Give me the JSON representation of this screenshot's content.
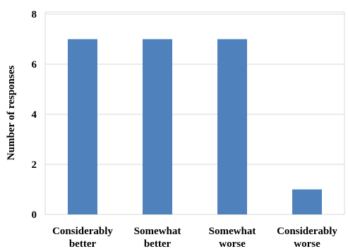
{
  "chart_data": {
    "type": "bar",
    "title": "",
    "xlabel": "",
    "ylabel": "Number of responses",
    "ylim": [
      0,
      8
    ],
    "yticks": [
      0,
      2,
      4,
      6,
      8
    ],
    "grid": true,
    "legend": "none",
    "bar_color": "#4F81BD",
    "grid_color": "#D9D9D9",
    "categories": [
      [
        "Considerably",
        "better"
      ],
      [
        "Somewhat",
        "better"
      ],
      [
        "Somewhat",
        "worse"
      ],
      [
        "Considerably",
        "worse"
      ]
    ],
    "values": [
      7,
      7,
      7,
      1
    ]
  }
}
